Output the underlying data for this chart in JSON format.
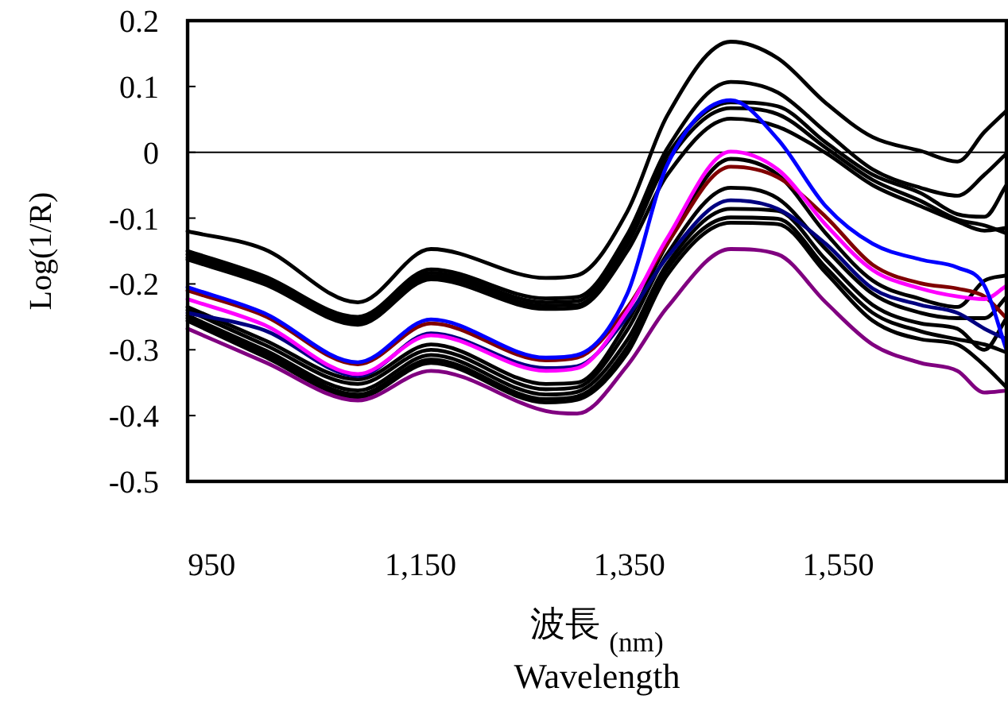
{
  "chart_data": {
    "type": "line",
    "ylabel": "Log(1/R)",
    "xlabel": "波長 $_{(nm)}$\nWavelength",
    "x": [
      927,
      1000,
      1090,
      1160,
      1270,
      1300,
      1348,
      1386,
      1447,
      1492,
      1538,
      1583,
      1629,
      1664,
      1690,
      1711
    ],
    "xlim": [
      927,
      1711
    ],
    "ylim": [
      -0.5,
      0.2
    ],
    "xticks": [
      950,
      {
        "value": 1150,
        "label": "1,150"
      },
      {
        "value": 1350,
        "label": "1,350"
      },
      {
        "value": 1550,
        "label": "1,550"
      }
    ],
    "yticks": [
      0.2,
      0.1,
      0,
      -0.1,
      -0.2,
      -0.3,
      -0.4,
      -0.5
    ],
    "ref_lines": [
      {
        "axis": "y",
        "value": 0,
        "color": "#000000"
      }
    ],
    "line_style": "solid",
    "series": [
      {
        "color": "#000000",
        "values": [
          -0.12,
          -0.147,
          -0.228,
          -0.147,
          -0.191,
          -0.187,
          -0.09,
          0.055,
          0.168,
          0.143,
          0.075,
          0.023,
          0.002,
          -0.014,
          0.031,
          0.063
        ]
      },
      {
        "color": "#000000",
        "values": [
          -0.15,
          -0.188,
          -0.25,
          -0.178,
          -0.222,
          -0.22,
          -0.125,
          0.005,
          0.107,
          0.091,
          0.031,
          -0.026,
          -0.054,
          -0.066,
          -0.034,
          -0.002
        ]
      },
      {
        "color": "#000000",
        "values": [
          -0.155,
          -0.192,
          -0.254,
          -0.183,
          -0.228,
          -0.226,
          -0.132,
          -0.005,
          0.076,
          0.07,
          0.015,
          -0.034,
          -0.062,
          -0.094,
          -0.098,
          -0.05
        ]
      },
      {
        "color": "#000000",
        "values": [
          -0.16,
          -0.196,
          -0.258,
          -0.188,
          -0.233,
          -0.232,
          -0.14,
          -0.015,
          0.067,
          0.058,
          0.007,
          -0.042,
          -0.074,
          -0.102,
          -0.111,
          -0.123
        ]
      },
      {
        "color": "#000000",
        "values": [
          -0.163,
          -0.2,
          -0.262,
          -0.193,
          -0.238,
          -0.236,
          -0.15,
          -0.035,
          0.051,
          0.039,
          -0.001,
          -0.05,
          -0.082,
          -0.105,
          -0.119,
          -0.115
        ]
      },
      {
        "color": "#000000",
        "values": [
          -0.235,
          -0.285,
          -0.345,
          -0.292,
          -0.352,
          -0.35,
          -0.258,
          -0.14,
          -0.01,
          -0.034,
          -0.123,
          -0.195,
          -0.223,
          -0.235,
          -0.195,
          -0.187
        ]
      },
      {
        "color": "#000000",
        "values": [
          -0.24,
          -0.292,
          -0.352,
          -0.3,
          -0.36,
          -0.357,
          -0.27,
          -0.155,
          -0.054,
          -0.07,
          -0.147,
          -0.215,
          -0.244,
          -0.252,
          -0.252,
          -0.22
        ]
      },
      {
        "color": "#000000",
        "values": [
          -0.248,
          -0.3,
          -0.362,
          -0.308,
          -0.368,
          -0.364,
          -0.285,
          -0.17,
          -0.086,
          -0.089,
          -0.163,
          -0.232,
          -0.26,
          -0.268,
          -0.3,
          -0.252
        ]
      },
      {
        "color": "#000000",
        "values": [
          -0.252,
          -0.305,
          -0.368,
          -0.315,
          -0.375,
          -0.371,
          -0.296,
          -0.178,
          -0.099,
          -0.101,
          -0.175,
          -0.244,
          -0.272,
          -0.284,
          -0.292,
          -0.304
        ]
      },
      {
        "color": "#000000",
        "values": [
          -0.256,
          -0.31,
          -0.372,
          -0.32,
          -0.38,
          -0.376,
          -0.305,
          -0.187,
          -0.107,
          -0.109,
          -0.183,
          -0.256,
          -0.284,
          -0.292,
          -0.324,
          -0.357
        ]
      },
      {
        "color": "#000080",
        "values": [
          -0.244,
          -0.27,
          -0.34,
          -0.275,
          -0.328,
          -0.325,
          -0.25,
          -0.16,
          -0.073,
          -0.086,
          -0.139,
          -0.207,
          -0.232,
          -0.244,
          -0.268,
          -0.284
        ]
      },
      {
        "color": "#800000",
        "values": [
          -0.21,
          -0.248,
          -0.322,
          -0.26,
          -0.316,
          -0.312,
          -0.236,
          -0.139,
          -0.022,
          -0.038,
          -0.098,
          -0.171,
          -0.199,
          -0.207,
          -0.219,
          -0.252
        ]
      },
      {
        "color": "#ff00ff",
        "values": [
          -0.223,
          -0.262,
          -0.337,
          -0.278,
          -0.332,
          -0.328,
          -0.241,
          -0.131,
          0.001,
          -0.026,
          -0.11,
          -0.179,
          -0.207,
          -0.219,
          -0.223,
          -0.203
        ]
      },
      {
        "color": "#0000ff",
        "values": [
          -0.205,
          -0.244,
          -0.319,
          -0.254,
          -0.312,
          -0.308,
          -0.215,
          -0.02,
          0.079,
          0.02,
          -0.082,
          -0.139,
          -0.163,
          -0.175,
          -0.203,
          -0.3
        ]
      },
      {
        "color": "#800080",
        "values": [
          -0.268,
          -0.318,
          -0.377,
          -0.332,
          -0.393,
          -0.397,
          -0.324,
          -0.236,
          -0.147,
          -0.155,
          -0.228,
          -0.292,
          -0.32,
          -0.332,
          -0.365,
          -0.362
        ]
      }
    ]
  }
}
